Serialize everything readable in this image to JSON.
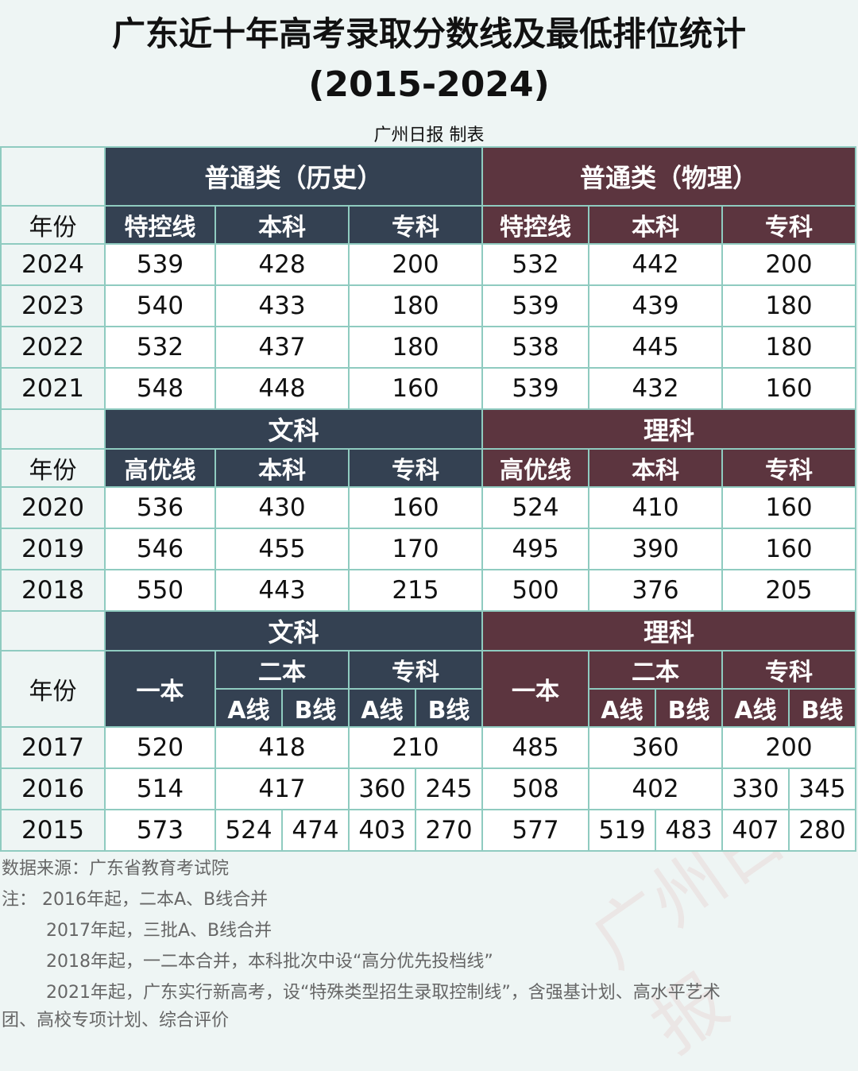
{
  "title": {
    "line1": "广东近十年高考录取分数线及最低排位统计",
    "line2": "(2015-2024)"
  },
  "credit": "广州日报 制表",
  "watermark": "广州日报",
  "labels": {
    "year": "年份",
    "hist": "普通类（历史）",
    "phys": "普通类（物理）",
    "teku": "特控线",
    "benke": "本科",
    "zhuanke": "专科",
    "wenke": "文科",
    "like": "理科",
    "gaoyou": "高优线",
    "yiben": "一本",
    "erben": "二本",
    "aline": "A线",
    "bline": "B线"
  },
  "colors": {
    "blue_header": "#344152",
    "red_header": "#5c353f",
    "border": "#8fcbc0"
  },
  "rows_a": [
    {
      "year": "2024",
      "h_tk": "539",
      "h_bk": "428",
      "h_zk": "200",
      "p_tk": "532",
      "p_bk": "442",
      "p_zk": "200"
    },
    {
      "year": "2023",
      "h_tk": "540",
      "h_bk": "433",
      "h_zk": "180",
      "p_tk": "539",
      "p_bk": "439",
      "p_zk": "180"
    },
    {
      "year": "2022",
      "h_tk": "532",
      "h_bk": "437",
      "h_zk": "180",
      "p_tk": "538",
      "p_bk": "445",
      "p_zk": "180"
    },
    {
      "year": "2021",
      "h_tk": "548",
      "h_bk": "448",
      "h_zk": "160",
      "p_tk": "539",
      "p_bk": "432",
      "p_zk": "160"
    }
  ],
  "rows_b": [
    {
      "year": "2020",
      "w_gy": "536",
      "w_bk": "430",
      "w_zk": "160",
      "l_gy": "524",
      "l_bk": "410",
      "l_zk": "160"
    },
    {
      "year": "2019",
      "w_gy": "546",
      "w_bk": "455",
      "w_zk": "170",
      "l_gy": "495",
      "l_bk": "390",
      "l_zk": "160"
    },
    {
      "year": "2018",
      "w_gy": "550",
      "w_bk": "443",
      "w_zk": "215",
      "l_gy": "500",
      "l_bk": "376",
      "l_zk": "205"
    }
  ],
  "rows_c": {
    "y2017": {
      "year": "2017",
      "w1": "520",
      "w2": "418",
      "wz": "210",
      "l1": "485",
      "l2": "360",
      "lz": "200"
    },
    "y2016": {
      "year": "2016",
      "w1": "514",
      "w2": "417",
      "wza": "360",
      "wzb": "245",
      "l1": "508",
      "l2": "402",
      "lza": "330",
      "lzb": "345"
    },
    "y2015": {
      "year": "2015",
      "w1": "573",
      "w2a": "524",
      "w2b": "474",
      "wza": "403",
      "wzb": "270",
      "l1": "577",
      "l2a": "519",
      "l2b": "483",
      "lza": "407",
      "lzb": "280"
    }
  },
  "notes": {
    "source": "数据来源：广东省教育考试院",
    "n1": "注：  2016年起，二本A、B线合并",
    "n2": "2017年起，三批A、B线合并",
    "n3": "2018年起，一二本合并，本科批次中设“高分优先投档线”",
    "n4": "2021年起，广东实行新高考，设“特殊类型招生录取控制线”，含强基计划、高水平艺术",
    "n5": "团、高校专项计划、综合评价"
  }
}
